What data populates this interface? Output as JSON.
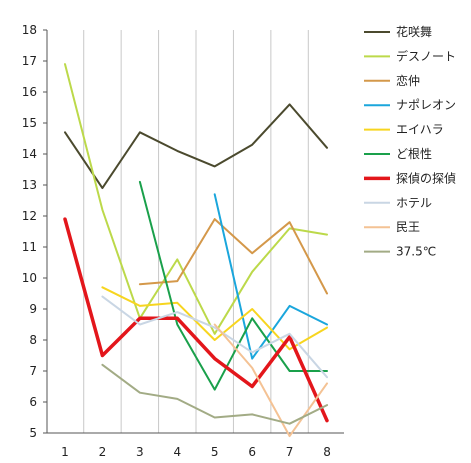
{
  "chart_data": {
    "type": "line",
    "title": "",
    "xlabel": "",
    "ylabel": "",
    "x": [
      1,
      2,
      3,
      4,
      5,
      6,
      7,
      8
    ],
    "x_tick_labels": [
      "1",
      "2",
      "3",
      "4",
      "5",
      "6",
      "7",
      "8"
    ],
    "y_tick_labels": [
      "5",
      "6",
      "7",
      "8",
      "9",
      "10",
      "11",
      "12",
      "13",
      "14",
      "15",
      "16",
      "17",
      "18"
    ],
    "ylim": [
      5,
      18
    ],
    "grid": "vertical",
    "legend_position": "right",
    "series": [
      {
        "name": "花咲舞",
        "color": "#4b4a2e",
        "width": 2,
        "values": [
          14.7,
          12.9,
          14.7,
          14.1,
          13.6,
          14.3,
          15.6,
          14.2
        ]
      },
      {
        "name": "デスノート",
        "color": "#bcd94a",
        "width": 2,
        "values": [
          16.9,
          12.2,
          8.7,
          10.6,
          8.2,
          10.2,
          11.6,
          11.4
        ]
      },
      {
        "name": "恋仲",
        "color": "#d4984a",
        "width": 2,
        "values": [
          null,
          null,
          9.8,
          9.9,
          11.9,
          10.8,
          11.8,
          9.5
        ]
      },
      {
        "name": "ナポレオン",
        "color": "#1aa6dc",
        "width": 2,
        "values": [
          null,
          null,
          null,
          null,
          12.7,
          7.4,
          9.1,
          8.5
        ]
      },
      {
        "name": "エイハラ",
        "color": "#f7d51f",
        "width": 2,
        "values": [
          null,
          9.7,
          9.1,
          9.2,
          8.0,
          9.0,
          7.7,
          8.4
        ]
      },
      {
        "name": "ど根性",
        "color": "#1aa04b",
        "width": 2,
        "values": [
          null,
          null,
          13.1,
          8.5,
          6.4,
          8.7,
          7.0,
          7.0
        ]
      },
      {
        "name": "探偵の探偵",
        "color": "#e3161b",
        "width": 3.5,
        "values": [
          11.9,
          7.5,
          8.7,
          8.7,
          7.4,
          6.5,
          8.1,
          5.4
        ]
      },
      {
        "name": "ホテル",
        "color": "#c9d6e4",
        "width": 2,
        "values": [
          null,
          9.4,
          8.5,
          8.9,
          8.4,
          7.6,
          8.2,
          6.8
        ]
      },
      {
        "name": "民王",
        "color": "#f4c294",
        "width": 2,
        "values": [
          null,
          null,
          null,
          null,
          8.5,
          7.1,
          4.9,
          6.6
        ]
      },
      {
        "name": "37.5℃",
        "color": "#a2ab85",
        "width": 2,
        "values": [
          null,
          7.2,
          6.3,
          6.1,
          5.5,
          5.6,
          5.3,
          5.9
        ]
      }
    ]
  }
}
